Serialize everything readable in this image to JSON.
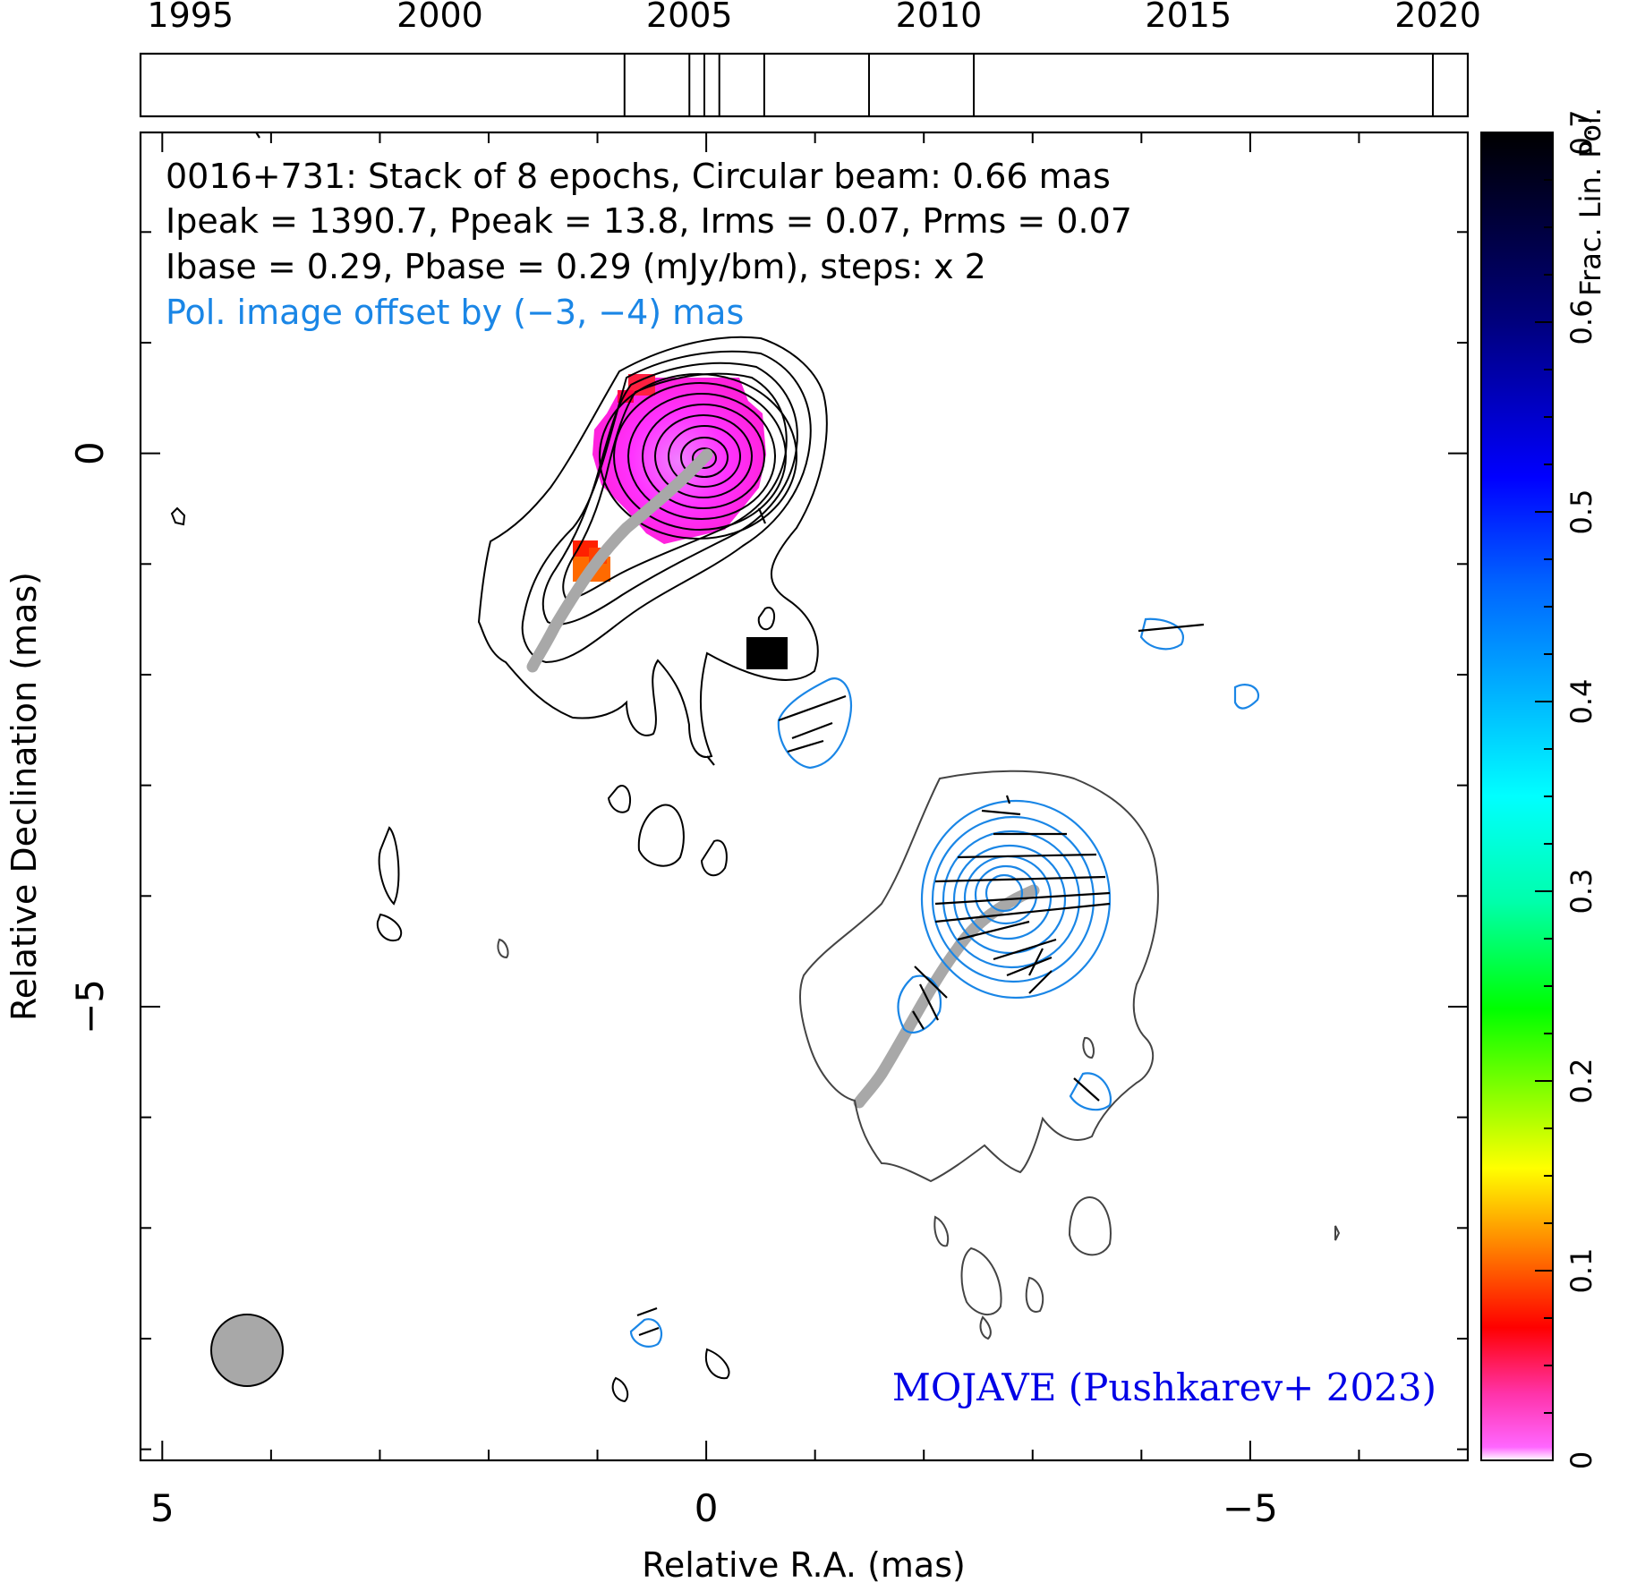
{
  "chart_data": {
    "type": "contour",
    "source": "0016+731",
    "info_lines": [
      "0016+731: Stack of 8 epochs, Circular beam: 0.66 mas",
      "Ipeak = 1390.7, Ppeak = 13.8, Irms = 0.07, Prms = 0.07",
      "Ibase = 0.29, Pbase = 0.29 (mJy/bm), steps: x 2"
    ],
    "offset_note": "Pol. image offset by (−3, −4) mas",
    "credit": "MOJAVE (Pushkarev+ 2023)",
    "xlabel": "Relative R.A. (mas)",
    "ylabel": "Relative Declination (mas)",
    "xlim": [
      5.2,
      -7.0
    ],
    "ylim": [
      -9.1,
      2.9
    ],
    "x_ticks": [
      {
        "v": 5,
        "label": "5"
      },
      {
        "v": 0,
        "label": "0"
      },
      {
        "v": -5,
        "label": "−5"
      }
    ],
    "y_ticks": [
      {
        "v": 0,
        "label": "0"
      },
      {
        "v": -5,
        "label": "−5"
      }
    ],
    "epoch_axis": {
      "range": [
        1994.0,
        2020.6
      ],
      "ticks": [
        1995,
        2000,
        2005,
        2010,
        2015,
        2020
      ],
      "epochs": [
        2003.7,
        2005.0,
        2005.3,
        2005.6,
        2006.5,
        2008.6,
        2010.7,
        2019.9
      ]
    },
    "colorbar": {
      "label": "Frac. Lin. Pol.",
      "range": [
        0,
        0.7
      ],
      "ticks": [
        0,
        0.1,
        0.2,
        0.3,
        0.4,
        0.5,
        0.6,
        0.7
      ]
    },
    "beam": {
      "x": 4.2,
      "y": -8.15,
      "diameter_mas": 0.66
    },
    "colors": {
      "total_intensity": "#000000",
      "polarization": "#1a86e6",
      "ridge": "#a8a8a8",
      "credit": "#0000e6",
      "note": "#1a86e6"
    }
  }
}
